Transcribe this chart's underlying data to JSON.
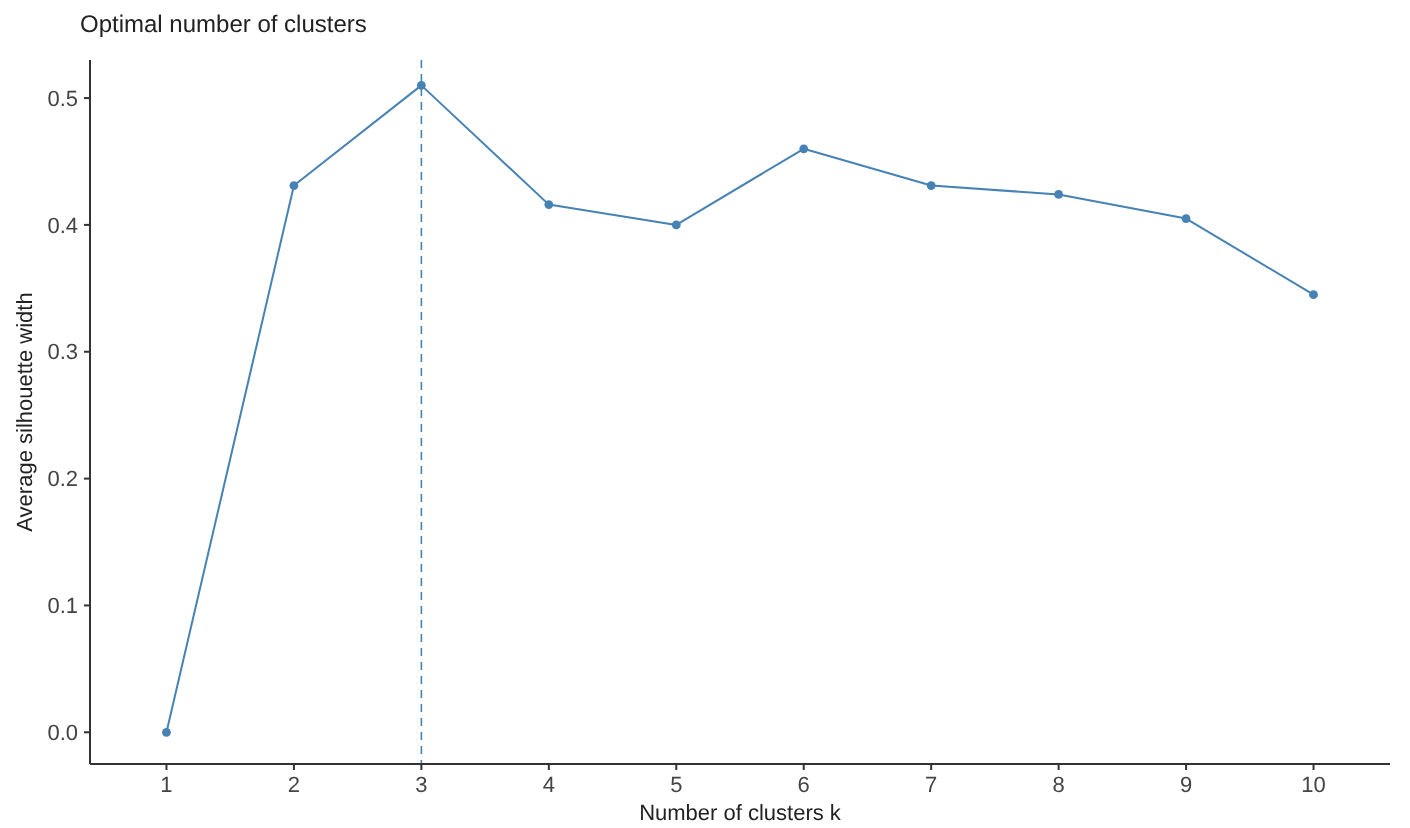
{
  "chart_data": {
    "type": "line",
    "title": "Optimal number of clusters",
    "xlabel": "Number of clusters k",
    "ylabel": "Average silhouette width",
    "categories": [
      "1",
      "2",
      "3",
      "4",
      "5",
      "6",
      "7",
      "8",
      "9",
      "10"
    ],
    "series": [
      {
        "color": "#4682b4",
        "values": [
          0.0,
          0.431,
          0.51,
          0.416,
          0.4,
          0.46,
          0.431,
          0.424,
          0.405,
          0.345
        ]
      }
    ],
    "ylim": [
      -0.025,
      0.53
    ],
    "yticks": [
      {
        "value": 0,
        "label": "0.0"
      },
      0.1,
      0.2,
      0.3,
      0.4,
      0.5
    ],
    "ref_lines": [
      {
        "axis": "x",
        "value": "3",
        "color": "#4682b4",
        "line_style": "dashed"
      }
    ],
    "marker": "circle",
    "line_style": "solid",
    "grid": false
  }
}
